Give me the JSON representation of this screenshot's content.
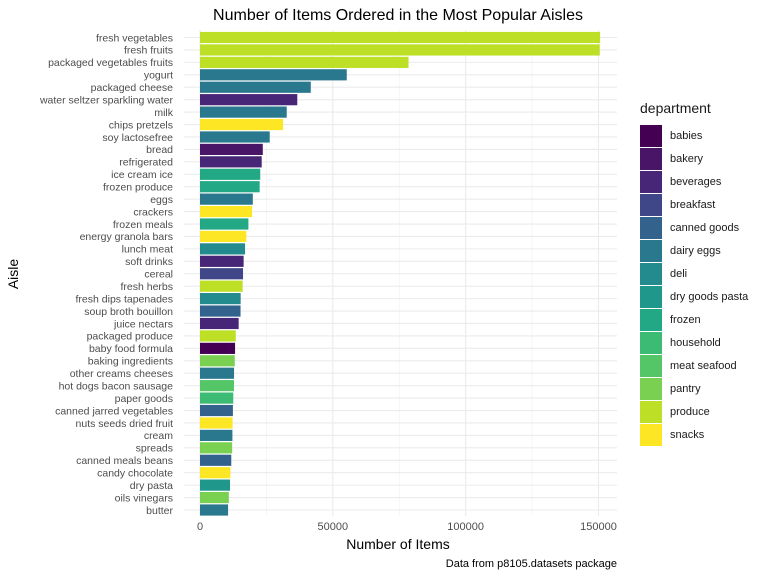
{
  "chart_data": {
    "type": "bar",
    "orientation": "horizontal",
    "title": "Number of Items Ordered in the Most Popular Aisles",
    "xlabel": "Number of Items",
    "ylabel": "Aisle",
    "caption": "Data from p8105.datasets package",
    "xlim": [
      0,
      160000
    ],
    "xticks": [
      0,
      50000,
      100000,
      150000
    ],
    "xtick_labels": [
      "0",
      "50000",
      "100000",
      "150000"
    ],
    "grid": true,
    "legend_title": "department",
    "legend_position": "right",
    "legend": [
      {
        "name": "babies",
        "color": "#440154"
      },
      {
        "name": "bakery",
        "color": "#481567"
      },
      {
        "name": "beverages",
        "color": "#482677"
      },
      {
        "name": "breakfast",
        "color": "#3f4788"
      },
      {
        "name": "canned goods",
        "color": "#33638d"
      },
      {
        "name": "dairy eggs",
        "color": "#29788e"
      },
      {
        "name": "deli",
        "color": "#238a8d"
      },
      {
        "name": "dry goods pasta",
        "color": "#1f988b"
      },
      {
        "name": "frozen",
        "color": "#22a884"
      },
      {
        "name": "household",
        "color": "#3cbb75"
      },
      {
        "name": "meat seafood",
        "color": "#55c667"
      },
      {
        "name": "pantry",
        "color": "#7ad151"
      },
      {
        "name": "produce",
        "color": "#bddf26"
      },
      {
        "name": "snacks",
        "color": "#fde725"
      }
    ],
    "bars": [
      {
        "aisle": "fresh vegetables",
        "value": 150609,
        "department": "produce"
      },
      {
        "aisle": "fresh fruits",
        "value": 150473,
        "department": "produce"
      },
      {
        "aisle": "packaged vegetables fruits",
        "value": 78493,
        "department": "produce"
      },
      {
        "aisle": "yogurt",
        "value": 55240,
        "department": "dairy eggs"
      },
      {
        "aisle": "packaged cheese",
        "value": 41699,
        "department": "dairy eggs"
      },
      {
        "aisle": "water seltzer sparkling water",
        "value": 36617,
        "department": "beverages"
      },
      {
        "aisle": "milk",
        "value": 32644,
        "department": "dairy eggs"
      },
      {
        "aisle": "chips pretzels",
        "value": 31269,
        "department": "snacks"
      },
      {
        "aisle": "soy lactosefree",
        "value": 26240,
        "department": "dairy eggs"
      },
      {
        "aisle": "bread",
        "value": 23635,
        "department": "bakery"
      },
      {
        "aisle": "refrigerated",
        "value": 23228,
        "department": "beverages"
      },
      {
        "aisle": "ice cream ice",
        "value": 22676,
        "department": "frozen"
      },
      {
        "aisle": "frozen produce",
        "value": 22453,
        "department": "frozen"
      },
      {
        "aisle": "eggs",
        "value": 19875,
        "department": "dairy eggs"
      },
      {
        "aisle": "crackers",
        "value": 19592,
        "department": "snacks"
      },
      {
        "aisle": "frozen meals",
        "value": 18221,
        "department": "frozen"
      },
      {
        "aisle": "energy granola bars",
        "value": 17449,
        "department": "snacks"
      },
      {
        "aisle": "lunch meat",
        "value": 16957,
        "department": "deli"
      },
      {
        "aisle": "soft drinks",
        "value": 16417,
        "department": "beverages"
      },
      {
        "aisle": "cereal",
        "value": 16201,
        "department": "breakfast"
      },
      {
        "aisle": "fresh herbs",
        "value": 16052,
        "department": "produce"
      },
      {
        "aisle": "fresh dips tapenades",
        "value": 15305,
        "department": "deli"
      },
      {
        "aisle": "soup broth bouillon",
        "value": 15260,
        "department": "canned goods"
      },
      {
        "aisle": "juice nectars",
        "value": 14549,
        "department": "beverages"
      },
      {
        "aisle": "packaged produce",
        "value": 13460,
        "department": "produce"
      },
      {
        "aisle": "baby food formula",
        "value": 13198,
        "department": "babies"
      },
      {
        "aisle": "baking ingredients",
        "value": 13088,
        "department": "pantry"
      },
      {
        "aisle": "other creams cheeses",
        "value": 12820,
        "department": "dairy eggs"
      },
      {
        "aisle": "hot dogs bacon sausage",
        "value": 12797,
        "department": "meat seafood"
      },
      {
        "aisle": "paper goods",
        "value": 12528,
        "department": "household"
      },
      {
        "aisle": "canned jarred vegetables",
        "value": 12384,
        "department": "canned goods"
      },
      {
        "aisle": "nuts seeds dried fruit",
        "value": 12263,
        "department": "snacks"
      },
      {
        "aisle": "cream",
        "value": 12200,
        "department": "dairy eggs"
      },
      {
        "aisle": "spreads",
        "value": 12102,
        "department": "pantry"
      },
      {
        "aisle": "canned meals beans",
        "value": 11774,
        "department": "canned goods"
      },
      {
        "aisle": "candy chocolate",
        "value": 11453,
        "department": "snacks"
      },
      {
        "aisle": "dry pasta",
        "value": 11298,
        "department": "dry goods pasta"
      },
      {
        "aisle": "oils vinegars",
        "value": 10854,
        "department": "pantry"
      },
      {
        "aisle": "butter",
        "value": 10575,
        "department": "dairy eggs"
      }
    ]
  }
}
